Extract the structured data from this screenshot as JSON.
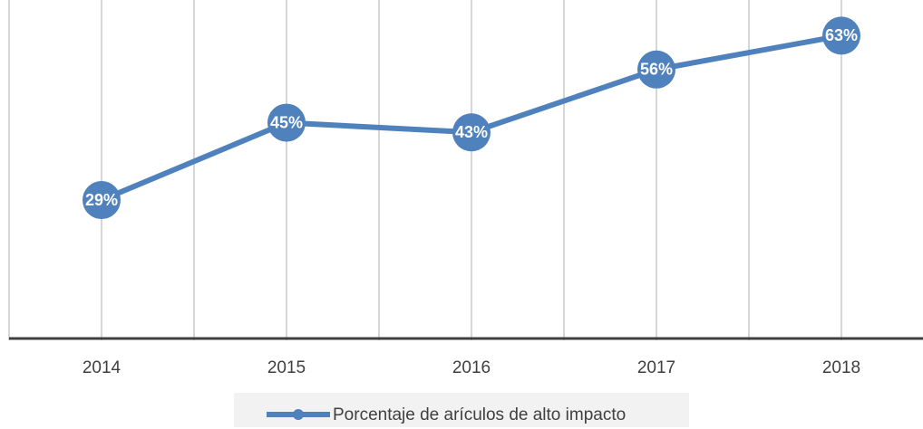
{
  "chart_data": {
    "type": "line",
    "categories": [
      "2014",
      "2015",
      "2016",
      "2017",
      "2018"
    ],
    "series": [
      {
        "name": "Porcentaje de arículos de alto impacto",
        "color": "#4f81bd",
        "values": [
          29,
          45,
          43,
          56,
          63
        ],
        "value_labels": [
          "29%",
          "45%",
          "43%",
          "56%",
          "63%"
        ]
      }
    ],
    "ylim": [
      0,
      70
    ],
    "grid": true,
    "legend": "bottom"
  }
}
